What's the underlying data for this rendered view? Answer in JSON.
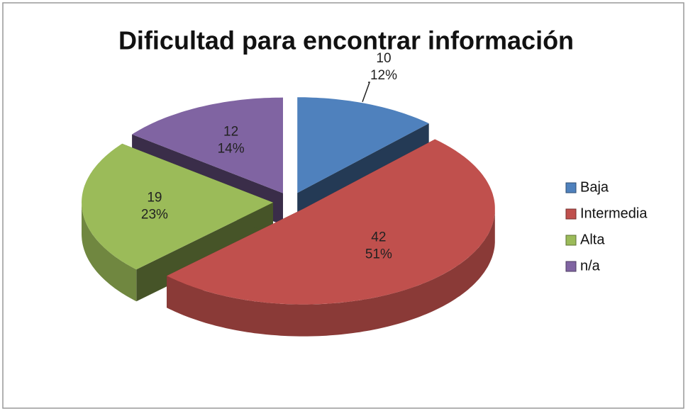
{
  "chart_data": {
    "type": "pie3d",
    "title": "Dificultad para encontrar información",
    "categories": [
      "Baja",
      "Intermedia",
      "Alta",
      "n/a"
    ],
    "values": [
      10,
      42,
      19,
      12
    ],
    "percent_labels": [
      "12%",
      "51%",
      "23%",
      "14%"
    ],
    "colors": [
      "#4f81bd",
      "#c0504d",
      "#9bbb59",
      "#8064a2"
    ],
    "legend": "right"
  }
}
